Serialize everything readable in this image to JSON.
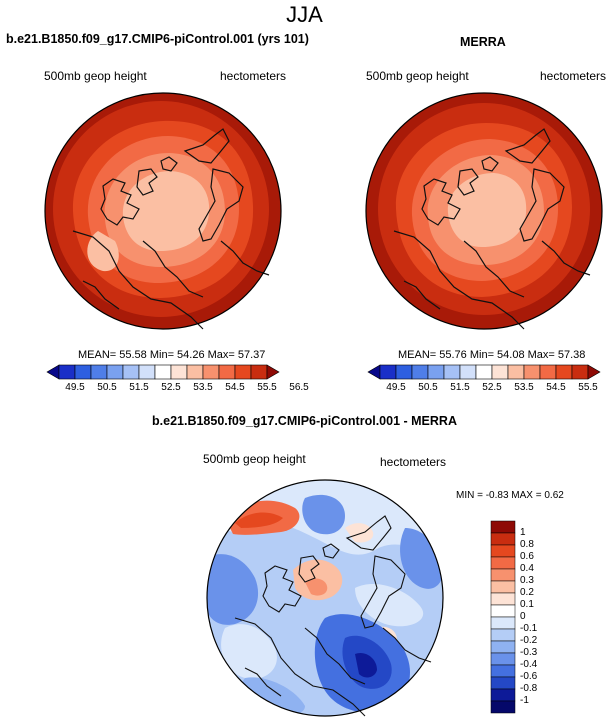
{
  "title": "JJA",
  "left_panel": {
    "title": "b.e21.B1850.f09_g17.CMIP6-piControl.001 (yrs 101)",
    "variable": "500mb geop height",
    "units": "hectometers",
    "stats": "MEAN=  55.58  Min=  54.26  Max=  57.37"
  },
  "right_panel": {
    "title": "MERRA",
    "variable": "500mb geop height",
    "units": "hectometers",
    "stats": "MEAN=  55.76  Min=  54.08  Max=  57.38"
  },
  "diff_panel": {
    "title": "b.e21.B1850.f09_g17.CMIP6-piControl.001 - MERRA",
    "variable": "500mb geop height",
    "units": "hectometers",
    "minmax": "MIN =  -0.83 MAX =   0.62"
  },
  "horiz_colorbar": {
    "labels": [
      "49.5",
      "50.5",
      "51.5",
      "52.5",
      "53.5",
      "54.5",
      "55.5",
      "56.5"
    ],
    "colors": [
      "#08088a",
      "#1a2fc8",
      "#2e5fe0",
      "#4f7ee8",
      "#7aa1f0",
      "#a6c1f6",
      "#d2e0fa",
      "#ffffff",
      "#fde3d6",
      "#fbbfa3",
      "#f7916e",
      "#f26a45",
      "#e5481f",
      "#c92d10",
      "#8e0a05"
    ]
  },
  "vert_colorbar": {
    "labels": [
      "1",
      "0.8",
      "0.6",
      "0.4",
      "0.3",
      "0.2",
      "0.1",
      "0",
      "-0.1",
      "-0.2",
      "-0.3",
      "-0.4",
      "-0.6",
      "-0.8",
      "-1"
    ],
    "colors": [
      "#8e0a05",
      "#c92d10",
      "#e5481f",
      "#f26a45",
      "#f7916e",
      "#fbbfa3",
      "#fde3d6",
      "#ffffff",
      "#dbe8fb",
      "#b4cdf6",
      "#8fb2f1",
      "#6a92ea",
      "#4470e0",
      "#2448c6",
      "#0d1a98",
      "#05086a"
    ]
  }
}
